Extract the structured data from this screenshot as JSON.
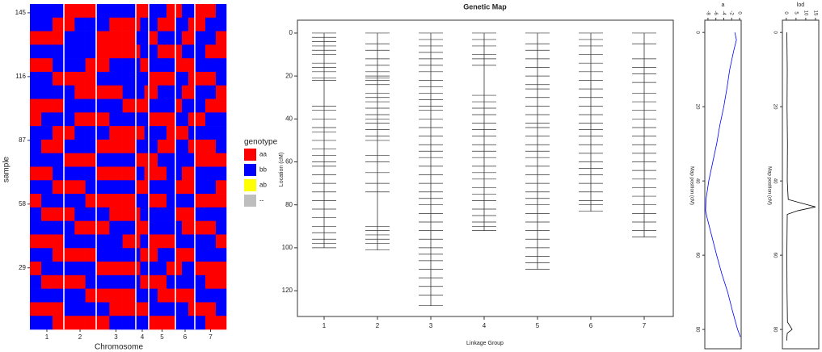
{
  "chart_data": [
    {
      "type": "heatmap",
      "xlabel": "Chromosome",
      "ylabel": "sample",
      "categories": [
        "1",
        "2",
        "3",
        "4",
        "5",
        "6",
        "7"
      ],
      "ylim": [
        1,
        149
      ],
      "yticks": [
        29,
        58,
        87,
        116,
        145
      ],
      "legend_title": "genotype",
      "genotypes": [
        "aa",
        "bb",
        "ab",
        "--"
      ],
      "colors": [
        "#ff0000",
        "#0000ff",
        "#ffff00",
        "#bebebe"
      ],
      "matrix": [
        [
          1,
          1,
          1,
          0,
          0,
          0,
          1,
          1,
          1,
          0,
          0,
          0,
          1,
          1,
          0,
          0,
          1,
          1,
          0,
          0,
          1
        ],
        [
          1,
          1,
          0,
          0,
          1,
          1,
          1,
          0,
          0,
          0,
          1,
          1,
          1,
          0,
          0,
          1,
          1,
          0,
          0,
          1,
          1
        ],
        [
          0,
          0,
          0,
          1,
          1,
          1,
          0,
          0,
          0,
          1,
          1,
          1,
          0,
          1,
          1,
          1,
          0,
          0,
          1,
          1,
          0
        ],
        [
          1,
          1,
          1,
          1,
          1,
          1,
          0,
          0,
          0,
          0,
          1,
          1,
          1,
          0,
          0,
          0,
          1,
          1,
          1,
          0,
          0
        ],
        [
          0,
          0,
          1,
          1,
          1,
          0,
          0,
          1,
          1,
          1,
          0,
          0,
          1,
          1,
          1,
          0,
          0,
          0,
          1,
          1,
          1
        ],
        [
          1,
          1,
          0,
          0,
          0,
          0,
          1,
          1,
          1,
          1,
          1,
          1,
          0,
          0,
          0,
          1,
          1,
          0,
          0,
          0,
          1
        ],
        [
          1,
          1,
          1,
          1,
          0,
          0,
          0,
          0,
          1,
          1,
          1,
          0,
          0,
          1,
          1,
          1,
          0,
          0,
          1,
          1,
          0
        ],
        [
          0,
          0,
          0,
          1,
          1,
          1,
          1,
          1,
          0,
          0,
          0,
          0,
          1,
          1,
          1,
          0,
          1,
          1,
          1,
          0,
          0
        ],
        [
          0,
          1,
          1,
          1,
          0,
          0,
          0,
          1,
          1,
          1,
          1,
          1,
          0,
          0,
          0,
          1,
          1,
          0,
          0,
          1,
          1
        ],
        [
          1,
          1,
          0,
          0,
          1,
          1,
          1,
          0,
          0,
          0,
          0,
          1,
          1,
          1,
          0,
          0,
          0,
          1,
          1,
          1,
          1
        ],
        [
          1,
          0,
          0,
          1,
          1,
          1,
          0,
          0,
          0,
          1,
          1,
          1,
          1,
          0,
          0,
          1,
          1,
          0,
          0,
          0,
          1
        ],
        [
          1,
          1,
          1,
          0,
          0,
          0,
          1,
          1,
          1,
          0,
          0,
          0,
          0,
          1,
          1,
          1,
          1,
          1,
          0,
          0,
          0
        ],
        [
          0,
          0,
          1,
          1,
          1,
          1,
          0,
          0,
          0,
          1,
          1,
          0,
          0,
          0,
          1,
          1,
          0,
          0,
          1,
          1,
          1
        ],
        [
          1,
          1,
          0,
          0,
          0,
          1,
          1,
          1,
          1,
          0,
          0,
          0,
          1,
          1,
          1,
          0,
          0,
          0,
          1,
          1,
          0
        ],
        [
          0,
          1,
          1,
          1,
          1,
          0,
          0,
          0,
          0,
          1,
          1,
          1,
          0,
          0,
          1,
          1,
          1,
          1,
          0,
          0,
          0
        ],
        [
          1,
          0,
          0,
          0,
          1,
          1,
          1,
          0,
          0,
          0,
          1,
          1,
          1,
          1,
          1,
          0,
          0,
          0,
          1,
          1,
          1
        ],
        [
          1,
          1,
          1,
          1,
          0,
          0,
          0,
          1,
          1,
          0,
          0,
          0,
          1,
          1,
          1,
          1,
          0,
          0,
          0,
          0,
          1
        ],
        [
          0,
          0,
          0,
          1,
          1,
          1,
          1,
          1,
          0,
          0,
          1,
          1,
          0,
          0,
          0,
          1,
          1,
          1,
          1,
          1,
          0
        ],
        [
          1,
          1,
          0,
          0,
          0,
          0,
          1,
          1,
          1,
          1,
          0,
          0,
          0,
          1,
          1,
          0,
          0,
          0,
          1,
          1,
          1
        ],
        [
          0,
          1,
          1,
          1,
          1,
          1,
          0,
          0,
          0,
          0,
          1,
          1,
          1,
          1,
          0,
          0,
          1,
          1,
          0,
          0,
          0
        ],
        [
          1,
          0,
          0,
          0,
          0,
          1,
          1,
          1,
          1,
          1,
          0,
          0,
          0,
          0,
          1,
          1,
          1,
          1,
          1,
          0,
          0
        ],
        [
          1,
          1,
          1,
          1,
          1,
          0,
          0,
          0,
          0,
          1,
          1,
          1,
          1,
          0,
          0,
          0,
          0,
          0,
          1,
          1,
          1
        ],
        [
          0,
          0,
          0,
          1,
          1,
          1,
          1,
          0,
          0,
          0,
          0,
          0,
          1,
          1,
          1,
          1,
          1,
          0,
          0,
          0,
          1
        ],
        [
          1,
          1,
          0,
          0,
          0,
          0,
          0,
          1,
          1,
          1,
          1,
          1,
          0,
          0,
          0,
          1,
          1,
          1,
          1,
          0,
          0
        ]
      ]
    },
    {
      "type": "genetic_map",
      "title": "Genetic Map",
      "xlabel": "Linkage Group",
      "ylabel": "Location (cM)",
      "ylim": [
        -6,
        132
      ],
      "yticks": [
        0,
        20,
        40,
        60,
        80,
        100,
        120
      ],
      "y_reversed": true,
      "series": [
        {
          "name": "1",
          "values": [
            0,
            2,
            4,
            6,
            8,
            10,
            14,
            16,
            18,
            21,
            22,
            34,
            36,
            40,
            44,
            46,
            50,
            54,
            57,
            60,
            62,
            66,
            70,
            74,
            78,
            82,
            86,
            90,
            93,
            96,
            98,
            100
          ]
        },
        {
          "name": "2",
          "values": [
            0,
            5,
            8,
            12,
            15,
            18,
            20,
            21,
            22,
            24,
            28,
            30,
            32,
            35,
            38,
            40,
            42,
            45,
            48,
            50,
            57,
            60,
            65,
            70,
            74,
            90,
            92,
            94,
            96,
            98,
            101
          ]
        },
        {
          "name": "3",
          "values": [
            0,
            3,
            6,
            9,
            12,
            15,
            18,
            22,
            25,
            28,
            31,
            34,
            36,
            40,
            44,
            48,
            52,
            55,
            58,
            62,
            66,
            70,
            74,
            77,
            80,
            84,
            88,
            92,
            96,
            100,
            103,
            106,
            110,
            114,
            118,
            122,
            127
          ]
        },
        {
          "name": "4",
          "values": [
            0,
            3,
            6,
            10,
            12,
            15,
            29,
            32,
            35,
            38,
            42,
            45,
            48,
            52,
            55,
            58,
            62,
            65,
            68,
            72,
            75,
            78,
            82,
            85,
            88,
            90,
            92
          ]
        },
        {
          "name": "5",
          "values": [
            0,
            5,
            8,
            12,
            16,
            20,
            24,
            26,
            30,
            34,
            38,
            42,
            44,
            48,
            52,
            55,
            58,
            62,
            66,
            70,
            74,
            77,
            80,
            84,
            88,
            92,
            96,
            100,
            104,
            107,
            110
          ]
        },
        {
          "name": "6",
          "values": [
            0,
            3,
            6,
            10,
            14,
            18,
            22,
            26,
            30,
            34,
            38,
            42,
            45,
            48,
            52,
            56,
            60,
            63,
            66,
            70,
            74,
            78,
            80,
            83
          ]
        },
        {
          "name": "7",
          "values": [
            0,
            5,
            12,
            16,
            19,
            23,
            28,
            32,
            36,
            40,
            44,
            48,
            52,
            56,
            60,
            64,
            68,
            72,
            76,
            80,
            84,
            88,
            92,
            95
          ]
        }
      ]
    },
    {
      "type": "line",
      "orientation": "rotated",
      "title": "a",
      "xlabel": "Map position (cM)",
      "x": [
        0,
        2,
        5,
        10,
        15,
        20,
        25,
        30,
        35,
        40,
        45,
        48,
        50,
        55,
        60,
        65,
        70,
        75,
        80,
        82
      ],
      "values": [
        -1.2,
        -0.8,
        -1.5,
        -2.5,
        -3.2,
        -4,
        -5,
        -5.8,
        -6.8,
        -7.8,
        -8.5,
        -8.6,
        -8.2,
        -7,
        -5.8,
        -4.5,
        -3,
        -1.8,
        -0.5,
        0.2
      ],
      "color": "#0000ff",
      "xlim": [
        -3.3,
        85.2
      ],
      "xticks": [
        0,
        20,
        40,
        60,
        80
      ],
      "ylim": [
        -8.8,
        0.4
      ],
      "yticks": [
        -8,
        -6,
        -4,
        -2,
        0
      ]
    },
    {
      "type": "line",
      "orientation": "rotated",
      "title": "lod",
      "xlabel": "Map position (cM)",
      "x": [
        0,
        10,
        20,
        30,
        40,
        45,
        46,
        47,
        48,
        49,
        60,
        70,
        78,
        80,
        81,
        83
      ],
      "values": [
        0.3,
        0.5,
        0.4,
        0.6,
        0.5,
        1,
        8,
        15,
        6,
        0.5,
        0.3,
        0.4,
        0.6,
        3,
        0.5,
        0.2
      ],
      "color": "#000000",
      "xlim": [
        -3.3,
        85.2
      ],
      "xticks": [
        0,
        20,
        40,
        60,
        80
      ],
      "ylim": [
        -2,
        16.7
      ],
      "yticks": [
        0,
        5,
        10,
        15
      ]
    }
  ]
}
